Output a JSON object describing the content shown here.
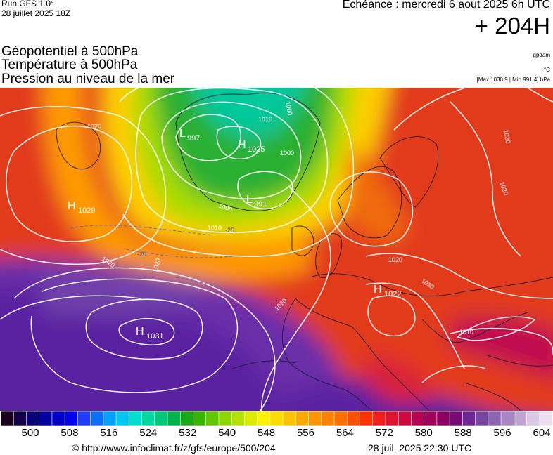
{
  "header": {
    "run_label": "Run GFS 1.0°",
    "run_date": "28 juillet 2025 18Z",
    "valid_label": "Echéance : mercredi 6 aout 2025 6h UTC",
    "lead_time": "+ 204H",
    "parameters": [
      "Géopotentiel à 500hPa",
      "Température à 500hPa",
      "Pression au niveau de la mer"
    ],
    "unit_geopotential": "gpdam",
    "unit_temperature": "°C",
    "pressure_extrema": "[Max 1030.9 | Min 991.4] hPa"
  },
  "map": {
    "pressure_centers": [
      {
        "type": "H",
        "value": "1029"
      },
      {
        "type": "L",
        "value": "997"
      },
      {
        "type": "H",
        "value": "1025"
      },
      {
        "type": "L",
        "value": "991"
      },
      {
        "type": "H",
        "value": "1022"
      },
      {
        "type": "H",
        "value": "1031"
      }
    ],
    "isobar_labels": [
      "1020",
      "1020",
      "1020",
      "1020",
      "1020",
      "1020",
      "1020",
      "1020",
      "1000",
      "1000",
      "1010",
      "1010",
      "1000",
      "1010"
    ],
    "temperature_labels": [
      "-20",
      "-25",
      "-10"
    ]
  },
  "colorbar": {
    "colors": [
      "#1a001a",
      "#14004a",
      "#0a0078",
      "#0000a0",
      "#0000c8",
      "#0000f0",
      "#1e3cff",
      "#0a6eff",
      "#00a0ff",
      "#00c8f0",
      "#00e0d0",
      "#00d8a0",
      "#00c878",
      "#00b44b",
      "#18a818",
      "#38b400",
      "#60c800",
      "#8cd700",
      "#b4e100",
      "#dcec00",
      "#fff200",
      "#ffdc00",
      "#ffc300",
      "#ffaa00",
      "#ff9600",
      "#ff8200",
      "#ff6e00",
      "#ff5000",
      "#ff3200",
      "#f01e1e",
      "#e01432",
      "#cc0a40",
      "#b40050",
      "#a0005c",
      "#8c0064",
      "#780a78",
      "#6e2896",
      "#7846a0",
      "#9064b4",
      "#a884c4",
      "#c0a4d4",
      "#d8c8e4",
      "#ece0f0"
    ],
    "tick_labels": [
      "500",
      "508",
      "516",
      "524",
      "532",
      "540",
      "548",
      "556",
      "564",
      "572",
      "580",
      "588",
      "596",
      "604"
    ]
  },
  "footer": {
    "url": "© http://www.infoclimat.fr/z/gfs/europe/500/204",
    "timestamp": "28 juil. 2025 22:30 UTC"
  }
}
